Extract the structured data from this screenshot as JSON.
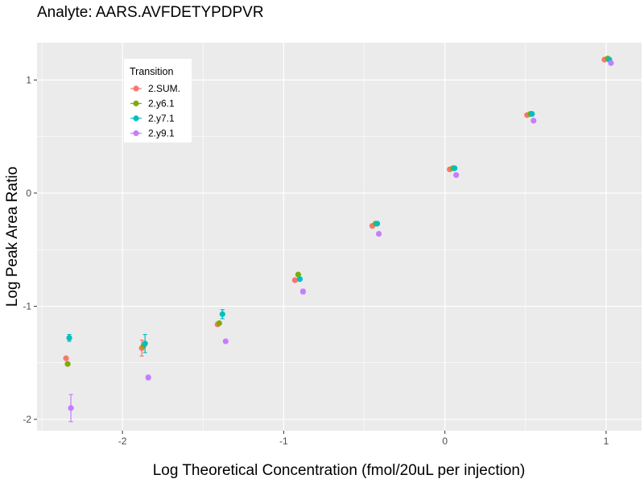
{
  "chart_data": {
    "type": "scatter",
    "title": "Analyte: AARS.AVFDETYPDPVR",
    "xlabel": "Log Theoretical Concentration (fmol/20uL per injection)",
    "ylabel": "Log Peak Area Ratio",
    "xlim": [
      -2.53,
      1.22
    ],
    "ylim": [
      -2.1,
      1.33
    ],
    "x_ticks": [
      -2,
      -1,
      0,
      1
    ],
    "x_tick_labels": [
      "-2",
      "-1",
      "0",
      "1"
    ],
    "y_ticks": [
      -2,
      -1,
      0,
      1
    ],
    "y_tick_labels": [
      "-2",
      "-1",
      "0",
      "1"
    ],
    "grid": true,
    "legend": {
      "title": "Transition",
      "position": "top-left"
    },
    "series": [
      {
        "name": "2.SUM.",
        "color": "#F8766D",
        "points": [
          {
            "x": -2.35,
            "y": -1.46,
            "err": 0.01
          },
          {
            "x": -1.88,
            "y": -1.37,
            "err": 0.07
          },
          {
            "x": -1.41,
            "y": -1.16,
            "err": 0.01
          },
          {
            "x": -0.93,
            "y": -0.77,
            "err": 0.01
          },
          {
            "x": -0.45,
            "y": -0.29,
            "err": 0.01
          },
          {
            "x": 0.03,
            "y": 0.21,
            "err": 0.01
          },
          {
            "x": 0.51,
            "y": 0.69,
            "err": 0.01
          },
          {
            "x": 0.99,
            "y": 1.18,
            "err": 0.01
          }
        ]
      },
      {
        "name": "2.y6.1",
        "color": "#7CAE00",
        "points": [
          {
            "x": -2.34,
            "y": -1.51,
            "err": 0.01
          },
          {
            "x": -1.87,
            "y": -1.35,
            "err": 0.01
          },
          {
            "x": -1.4,
            "y": -1.15,
            "err": 0.01
          },
          {
            "x": -0.91,
            "y": -0.72,
            "err": 0.01
          },
          {
            "x": -0.43,
            "y": -0.27,
            "err": 0.01
          },
          {
            "x": 0.05,
            "y": 0.22,
            "err": 0.01
          },
          {
            "x": 0.53,
            "y": 0.7,
            "err": 0.01
          },
          {
            "x": 1.01,
            "y": 1.19,
            "err": 0.01
          }
        ]
      },
      {
        "name": "2.y7.1",
        "color": "#00BFC4",
        "points": [
          {
            "x": -2.33,
            "y": -1.28,
            "err": 0.03
          },
          {
            "x": -1.86,
            "y": -1.33,
            "err": 0.08
          },
          {
            "x": -1.38,
            "y": -1.07,
            "err": 0.04
          },
          {
            "x": -0.9,
            "y": -0.76,
            "err": 0.01
          },
          {
            "x": -0.42,
            "y": -0.27,
            "err": 0.01
          },
          {
            "x": 0.06,
            "y": 0.22,
            "err": 0.01
          },
          {
            "x": 0.54,
            "y": 0.7,
            "err": 0.01
          },
          {
            "x": 1.02,
            "y": 1.18,
            "err": 0.01
          }
        ]
      },
      {
        "name": "2.y9.1",
        "color": "#C77CFF",
        "points": [
          {
            "x": -2.32,
            "y": -1.9,
            "err": 0.12
          },
          {
            "x": -1.84,
            "y": -1.63,
            "err": 0.02
          },
          {
            "x": -1.36,
            "y": -1.31,
            "err": 0.01
          },
          {
            "x": -0.88,
            "y": -0.87,
            "err": 0.02
          },
          {
            "x": -0.41,
            "y": -0.36,
            "err": 0.01
          },
          {
            "x": 0.07,
            "y": 0.16,
            "err": 0.01
          },
          {
            "x": 0.55,
            "y": 0.64,
            "err": 0.01
          },
          {
            "x": 1.03,
            "y": 1.15,
            "err": 0.01
          }
        ]
      }
    ]
  }
}
